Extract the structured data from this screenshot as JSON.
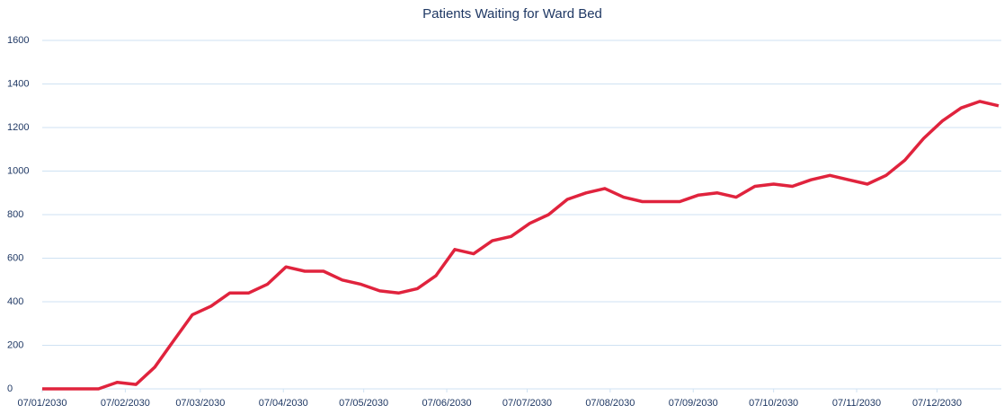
{
  "chart_data": {
    "type": "line",
    "title": "Patients Waiting for Ward Bed",
    "x": [
      "07/01/2030",
      "14/01/2030",
      "21/01/2030",
      "28/01/2030",
      "04/02/2030",
      "11/02/2030",
      "18/02/2030",
      "25/02/2030",
      "04/03/2030",
      "11/03/2030",
      "18/03/2030",
      "25/03/2030",
      "01/04/2030",
      "08/04/2030",
      "15/04/2030",
      "22/04/2030",
      "29/04/2030",
      "06/05/2030",
      "13/05/2030",
      "20/05/2030",
      "27/05/2030",
      "03/06/2030",
      "10/06/2030",
      "17/06/2030",
      "24/06/2030",
      "01/07/2030",
      "08/07/2030",
      "15/07/2030",
      "22/07/2030",
      "29/07/2030",
      "05/08/2030",
      "12/08/2030",
      "19/08/2030",
      "26/08/2030",
      "02/09/2030",
      "09/09/2030",
      "16/09/2030",
      "23/09/2030",
      "30/09/2030",
      "07/10/2030",
      "14/10/2030",
      "21/10/2030",
      "28/10/2030",
      "04/11/2030",
      "11/11/2030",
      "18/11/2030",
      "25/11/2030",
      "02/12/2030",
      "09/12/2030",
      "16/12/2030",
      "23/12/2030",
      "30/12/2030"
    ],
    "series": [
      {
        "name": "Patients Waiting for Ward Bed",
        "color": "#e0233d",
        "values": [
          0,
          0,
          0,
          0,
          30,
          20,
          100,
          220,
          340,
          380,
          440,
          440,
          480,
          560,
          540,
          540,
          500,
          480,
          450,
          440,
          460,
          520,
          640,
          620,
          680,
          700,
          760,
          800,
          870,
          900,
          920,
          880,
          860,
          860,
          860,
          890,
          900,
          880,
          930,
          940,
          930,
          960,
          980,
          960,
          940,
          980,
          1050,
          1150,
          1230,
          1290,
          1320,
          1300
        ]
      }
    ],
    "xlim": [
      "07/01/2030",
      "31/12/2030"
    ],
    "xticks": [
      "07/01/2030",
      "07/02/2030",
      "07/03/2030",
      "07/04/2030",
      "07/05/2030",
      "07/06/2030",
      "07/07/2030",
      "07/08/2030",
      "07/09/2030",
      "07/10/2030",
      "07/11/2030",
      "07/12/2030"
    ],
    "ylim": [
      0,
      1600
    ],
    "yticks": [
      0,
      200,
      400,
      600,
      800,
      1000,
      1200,
      1400,
      1600
    ],
    "grid": true
  }
}
